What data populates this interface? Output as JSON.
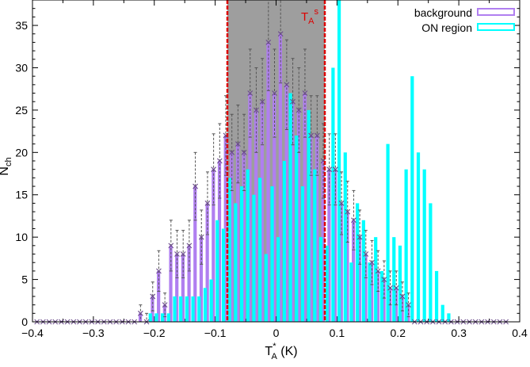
{
  "chart_data": {
    "type": "bar",
    "xlabel": {
      "main": "T",
      "sup": "*",
      "sub": "A",
      "unit": " (K)"
    },
    "ylabel": {
      "main": "N",
      "sub": "ch"
    },
    "xlim": [
      -0.4,
      0.4
    ],
    "ylim": [
      0,
      38
    ],
    "xticks": [
      -0.4,
      -0.3,
      -0.2,
      -0.1,
      0,
      0.1,
      0.2,
      0.3,
      0.4
    ],
    "xtick_labels": [
      "−0.4",
      "−0.3",
      "−0.2",
      "−0.1",
      "0",
      "0.1",
      "0.2",
      "0.3",
      "0.4"
    ],
    "yticks": [
      0,
      5,
      10,
      15,
      20,
      25,
      30,
      35
    ],
    "threshold_band": {
      "low": -0.08,
      "high": 0.08,
      "label_main": "T",
      "label_sub": "A",
      "label_sup": "s",
      "color": "#dd0000",
      "fill": "#9e9e9e"
    },
    "legend_position": "top-right",
    "series": [
      {
        "name": "background",
        "color": "#b07ff0",
        "x": [
          -0.22,
          -0.21,
          -0.2,
          -0.19,
          -0.18,
          -0.17,
          -0.16,
          -0.15,
          -0.14,
          -0.13,
          -0.12,
          -0.11,
          -0.1,
          -0.09,
          -0.08,
          -0.07,
          -0.06,
          -0.05,
          -0.04,
          -0.03,
          -0.02,
          -0.01,
          0,
          0.01,
          0.02,
          0.03,
          0.04,
          0.05,
          0.06,
          0.07,
          0.08,
          0.09,
          0.1,
          0.11,
          0.12,
          0.13,
          0.14,
          0.15,
          0.16,
          0.17,
          0.18,
          0.19,
          0.2,
          0.21,
          0.22
        ],
        "values": [
          1,
          0,
          3,
          6,
          2,
          9,
          8,
          8,
          9,
          16,
          10,
          14,
          18,
          19,
          22,
          20,
          21,
          20,
          27,
          25,
          26,
          33,
          27,
          34,
          28,
          26,
          25,
          27,
          22,
          22,
          19,
          18,
          18,
          14,
          13,
          12,
          10,
          8,
          7,
          6,
          5,
          4,
          4,
          3,
          2
        ],
        "errors": [
          1,
          1,
          1.7,
          2.4,
          1.4,
          3,
          2.8,
          2.8,
          3,
          4,
          3.2,
          3.7,
          4.2,
          4.4,
          4.7,
          4.5,
          4.6,
          4.5,
          5.2,
          5,
          5.1,
          5.7,
          5.2,
          5.8,
          5.3,
          5.1,
          5,
          5.2,
          4.7,
          4.7,
          4.4,
          4.2,
          4.2,
          3.7,
          3.6,
          3.5,
          3.2,
          2.8,
          2.6,
          2.4,
          2.2,
          2,
          2,
          1.7,
          1.4
        ]
      },
      {
        "name": "ON region",
        "color": "#00ffff",
        "x": [
          -0.22,
          -0.21,
          -0.2,
          -0.19,
          -0.18,
          -0.17,
          -0.16,
          -0.15,
          -0.14,
          -0.13,
          -0.12,
          -0.11,
          -0.1,
          -0.09,
          -0.08,
          -0.07,
          -0.06,
          -0.05,
          -0.04,
          -0.03,
          -0.02,
          -0.01,
          0,
          0.01,
          0.02,
          0.03,
          0.04,
          0.05,
          0.06,
          0.07,
          0.08,
          0.09,
          0.1,
          0.11,
          0.12,
          0.13,
          0.14,
          0.15,
          0.16,
          0.17,
          0.18,
          0.19,
          0.2,
          0.21,
          0.22,
          0.23,
          0.24,
          0.25,
          0.26,
          0.27,
          0.28
        ],
        "values": [
          0,
          1,
          1,
          1,
          1,
          3,
          3,
          3,
          3,
          3,
          4,
          5,
          12,
          11,
          17,
          14,
          16,
          18,
          15,
          17,
          8,
          16,
          10,
          19,
          27,
          22,
          16,
          25,
          18,
          10,
          9,
          30,
          38,
          20,
          7,
          14,
          12,
          7,
          10,
          6,
          21,
          10,
          9,
          18,
          29,
          20,
          18,
          14,
          6,
          2,
          1
        ]
      }
    ]
  }
}
